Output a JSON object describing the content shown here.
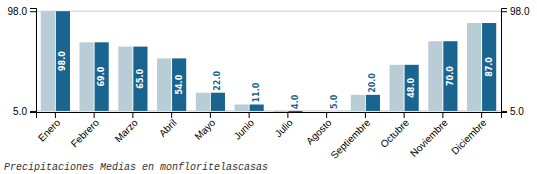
{
  "chart_data": {
    "type": "bar",
    "title": "Precipitaciones Medias en monfloritelascasas",
    "categories": [
      "Enero",
      "Febrero",
      "Marzo",
      "Abril",
      "Mayo",
      "Junio",
      "Julio",
      "Agosto",
      "Septiembre",
      "Octubre",
      "Noviembre",
      "Diciembre"
    ],
    "series": [
      {
        "color": "#b8cdd6",
        "values": [
          98,
          69,
          65,
          54,
          22,
          11,
          4,
          5,
          20,
          48,
          70,
          87
        ]
      },
      {
        "color": "#1a6490",
        "values": [
          98,
          69,
          65,
          54,
          22,
          11,
          4,
          5,
          20,
          48,
          70,
          87
        ],
        "data_labels": true,
        "value_labels": [
          "98.0",
          "69.0",
          "65.0",
          "54.0",
          "22.0",
          "11.0",
          "4.0",
          "5.0",
          "20.0",
          "48.0",
          "70.0",
          "87.0"
        ]
      }
    ],
    "ylim": [
      4,
      101
    ],
    "yticks": [
      {
        "value": 5,
        "label": "5.0"
      },
      {
        "value": 98,
        "label": "98.0"
      }
    ],
    "y2lim": [
      4,
      101
    ],
    "y2ticks": [
      {
        "value": 5,
        "label": "5.0"
      },
      {
        "value": 98,
        "label": "98.0"
      }
    ],
    "grid": true
  }
}
